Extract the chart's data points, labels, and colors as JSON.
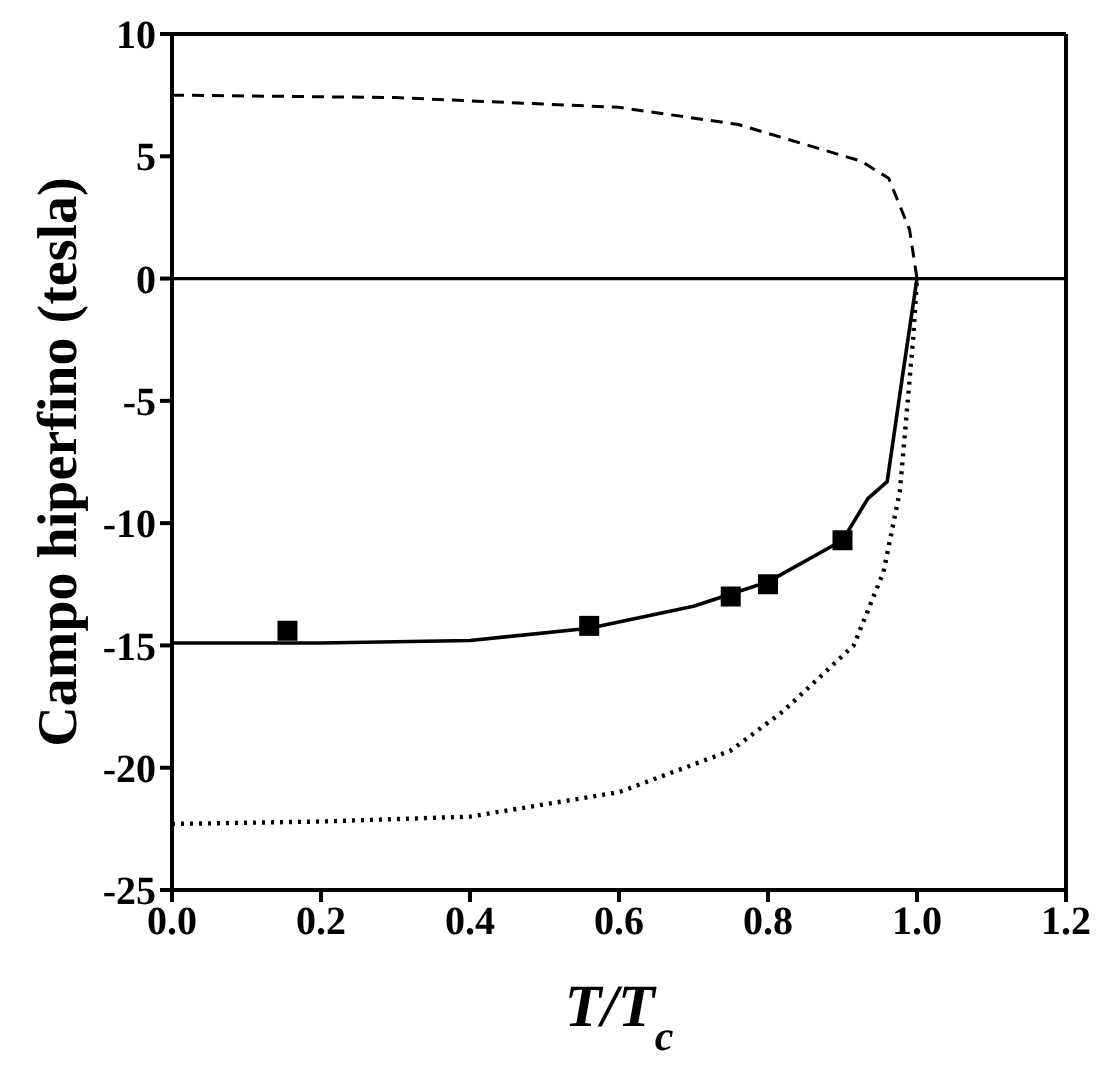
{
  "chart_data": {
    "type": "line",
    "xlabel": "T/T$_{c}$",
    "ylabel": "Campo hiperfino (tesla)",
    "xlim": [
      0,
      1.2
    ],
    "xticks": [
      {
        "value": 0,
        "label": "0.0"
      },
      {
        "value": 0.2,
        "label": "0.2"
      },
      {
        "value": 0.4,
        "label": "0.4"
      },
      {
        "value": 0.6,
        "label": "0.6"
      },
      {
        "value": 0.8,
        "label": "0.8"
      },
      {
        "value": 1,
        "label": "1.0"
      },
      {
        "value": 1.2,
        "label": "1.2"
      }
    ],
    "ylim": [
      -25,
      10
    ],
    "yticks": [
      -25,
      -20,
      -15,
      -10,
      -5,
      0,
      5,
      10
    ],
    "ref_lines": [
      {
        "axis": "y",
        "value": 0,
        "color": "#000000",
        "line_style": "solid"
      }
    ],
    "series": [
      {
        "color": "#000000",
        "line_style": "solid",
        "marker": "none",
        "x": [
          0,
          0.2,
          0.4,
          0.56,
          0.7,
          0.8,
          0.9,
          0.934,
          0.96,
          0.98,
          1.0
        ],
        "values": [
          -14.9,
          -14.9,
          -14.8,
          -14.3,
          -13.4,
          -12.4,
          -10.7,
          -9.0,
          -8.3,
          -4.1,
          0
        ]
      },
      {
        "color": "#000000",
        "line_style": "dashed",
        "marker": "none",
        "x": [
          0,
          0.3,
          0.6,
          0.76,
          0.925,
          0.962,
          0.99,
          1.0
        ],
        "values": [
          7.5,
          7.4,
          7.0,
          6.3,
          4.8,
          4.1,
          2.0,
          0
        ]
      },
      {
        "color": "#000000",
        "line_style": "dotted",
        "marker": "none",
        "x": [
          0,
          0.2,
          0.4,
          0.6,
          0.75,
          0.82,
          0.915,
          0.955,
          0.977,
          0.995,
          1.0
        ],
        "values": [
          -22.3,
          -22.2,
          -22.0,
          -21.0,
          -19.3,
          -17.7,
          -15.0,
          -12.0,
          -8.7,
          -2.4,
          0
        ]
      },
      {
        "type": "scatter",
        "color": "#000000",
        "marker": "square",
        "x": [
          0.155,
          0.56,
          0.75,
          0.8,
          0.9
        ],
        "values": [
          -14.4,
          -14.2,
          -13.0,
          -12.5,
          -10.7
        ]
      }
    ]
  }
}
